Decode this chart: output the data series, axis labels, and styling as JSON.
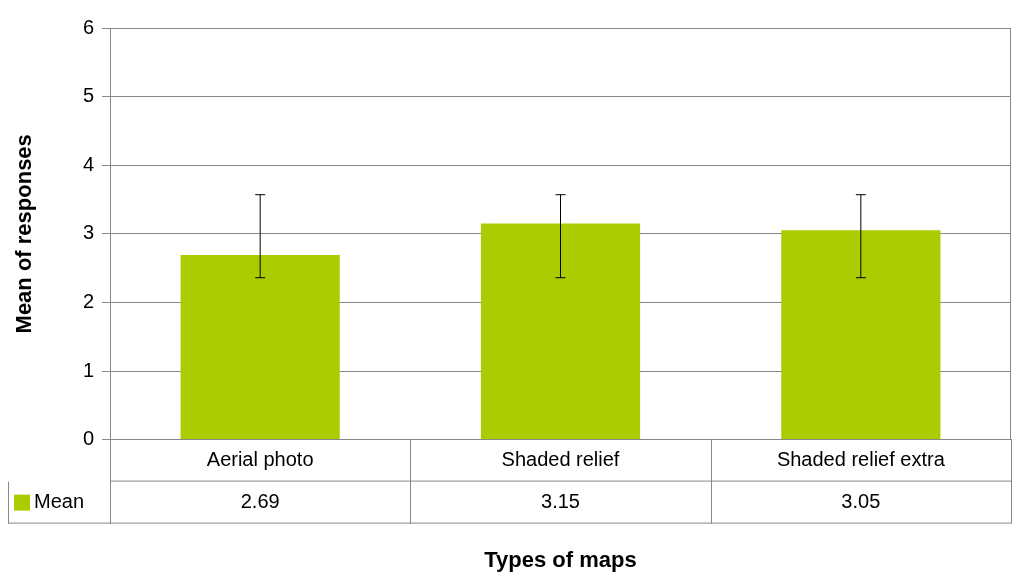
{
  "chart_data": {
    "type": "bar",
    "xlabel": "Types of maps",
    "ylabel": "Mean of responses",
    "categories": [
      "Aerial photo",
      "Shaded relief",
      "Shaded relief extra"
    ],
    "series": [
      {
        "name": "Mean",
        "color": "#aacc00",
        "values": [
          2.69,
          3.15,
          3.05
        ],
        "errors": [
          [
            2.36,
            3.57
          ],
          [
            2.36,
            3.57
          ],
          [
            2.36,
            3.57
          ]
        ]
      }
    ],
    "ylim": [
      0,
      6
    ],
    "yticks": [
      0,
      1,
      2,
      3,
      4,
      5,
      6
    ],
    "grid": "y",
    "legend": "bottom left",
    "data_labels": true
  }
}
